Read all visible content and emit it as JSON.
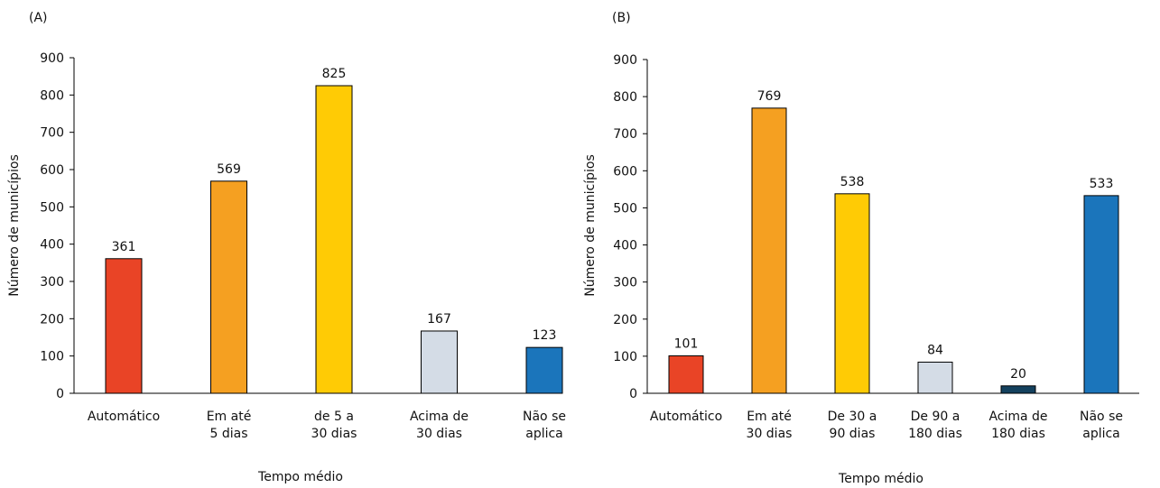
{
  "chart_data": [
    {
      "panel_label": "(A)",
      "type": "bar",
      "categories": [
        [
          "Automático"
        ],
        [
          "Em até",
          "5 dias"
        ],
        [
          "de 5 a",
          "30 dias"
        ],
        [
          "Acima de",
          "30 dias"
        ],
        [
          "Não se",
          "aplica"
        ]
      ],
      "values": [
        361,
        569,
        825,
        167,
        123
      ],
      "colors": [
        "#E94426",
        "#F5A021",
        "#FFCB05",
        "#D4DCE6",
        "#1B75BB"
      ],
      "xlabel": "Tempo médio",
      "ylabel": "Número de municípios",
      "ylim": [
        0,
        900
      ],
      "yticks": [
        0,
        100,
        200,
        300,
        400,
        500,
        600,
        700,
        800,
        900
      ],
      "grid": false,
      "legend": "none"
    },
    {
      "panel_label": "(B)",
      "type": "bar",
      "categories": [
        [
          "Automático"
        ],
        [
          "Em até",
          "30 dias"
        ],
        [
          "De 30 a",
          "90 dias"
        ],
        [
          "De 90 a",
          "180 dias"
        ],
        [
          "Acima de",
          "180 dias"
        ],
        [
          "Não se",
          "aplica"
        ]
      ],
      "values": [
        101,
        769,
        538,
        84,
        20,
        533
      ],
      "colors": [
        "#E94426",
        "#F5A021",
        "#FFCB05",
        "#D4DCE6",
        "#14415E",
        "#1B75BB"
      ],
      "xlabel": "Tempo médio",
      "ylabel": "Número de municípios",
      "ylim": [
        0,
        900
      ],
      "yticks": [
        0,
        100,
        200,
        300,
        400,
        500,
        600,
        700,
        800,
        900
      ],
      "grid": false,
      "legend": "none"
    }
  ]
}
